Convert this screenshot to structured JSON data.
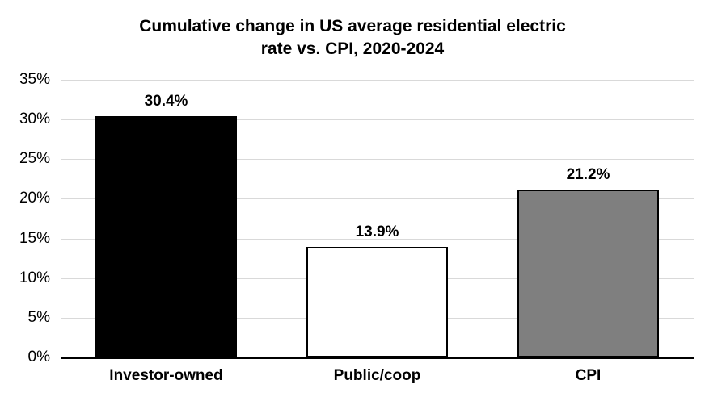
{
  "chart_data": {
    "type": "bar",
    "title": "Cumulative change in US average residential electric rate vs. CPI, 2020-2024",
    "title_lines": [
      "Cumulative change in US average residential electric",
      "rate vs. CPI, 2020-2024"
    ],
    "categories": [
      "Investor-owned",
      "Public/coop",
      "CPI"
    ],
    "values": [
      30.4,
      13.9,
      21.2
    ],
    "data_labels": [
      "30.4%",
      "13.9%",
      "21.2%"
    ],
    "bar_colors": [
      "#000000",
      "#ffffff",
      "#7f7f7f"
    ],
    "bar_border_color": "#000000",
    "xlabel": "",
    "ylabel": "",
    "ylim": [
      0,
      35
    ],
    "y_tick_interval": 5,
    "y_tick_labels": [
      "0%",
      "5%",
      "10%",
      "15%",
      "20%",
      "25%",
      "30%",
      "35%"
    ],
    "grid": true,
    "gridline_color": "#d9d9d9",
    "axis_line_color": "#000000",
    "text_color": "#000000",
    "background_color": "#ffffff",
    "legend_position": "none"
  }
}
